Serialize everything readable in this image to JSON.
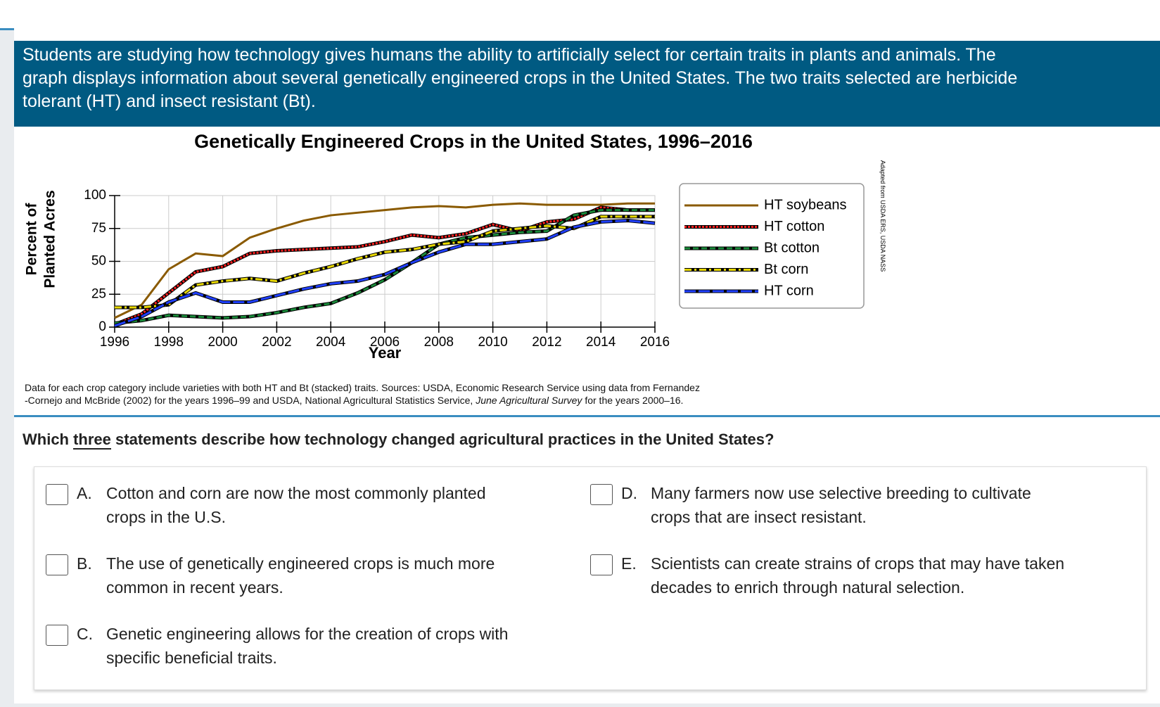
{
  "passage": {
    "lines": [
      "Students are studying how technology gives humans the ability to artificially select for certain traits in plants and animals. The",
      "graph displays information about several genetically engineered crops in the United States. The two traits selected are herbicide",
      "tolerant (HT) and insect resistant (Bt)."
    ]
  },
  "chart_data": {
    "type": "line",
    "title": "Genetically Engineered Crops in the United States, 1996–2016",
    "ylabel": [
      "Percent of",
      "Planted Acres"
    ],
    "xlabel": "Year",
    "source_note": "Adapted from USDA ERS, USDA NASS",
    "x": [
      1996,
      1997,
      1998,
      1999,
      2000,
      2001,
      2002,
      2003,
      2004,
      2005,
      2006,
      2007,
      2008,
      2009,
      2010,
      2011,
      2012,
      2013,
      2014,
      2015,
      2016
    ],
    "xlim": [
      1996,
      2016
    ],
    "xticks": [
      1996,
      1998,
      2000,
      2002,
      2004,
      2006,
      2008,
      2010,
      2012,
      2014,
      2016
    ],
    "ylim": [
      0,
      100
    ],
    "yticks": [
      0,
      25,
      50,
      75,
      100
    ],
    "grid": true,
    "legend": "right",
    "series": [
      {
        "name": "HT soybeans",
        "color": "#8a5a00",
        "style": "solid",
        "values": [
          7,
          17,
          44,
          56,
          54,
          68,
          75,
          81,
          85,
          87,
          89,
          91,
          92,
          91,
          93,
          94,
          93,
          93,
          93,
          94,
          94
        ]
      },
      {
        "name": "HT cotton",
        "color": "#ff2020",
        "style": "dotted",
        "values": [
          2,
          10,
          26,
          42,
          46,
          56,
          58,
          59,
          60,
          61,
          65,
          70,
          68,
          71,
          78,
          73,
          80,
          82,
          91,
          89,
          89
        ]
      },
      {
        "name": "Bt cotton",
        "color": "#1a8a3a",
        "style": "dashed",
        "values": [
          3,
          5,
          9,
          8,
          7,
          8,
          11,
          15,
          18,
          26,
          36,
          49,
          63,
          68,
          70,
          72,
          73,
          85,
          89,
          89,
          89
        ]
      },
      {
        "name": "Bt corn",
        "color": "#e8d800",
        "style": "dash-dot",
        "values": [
          15,
          15,
          17,
          32,
          35,
          37,
          35,
          41,
          46,
          52,
          57,
          59,
          63,
          65,
          73,
          75,
          77,
          75,
          84,
          84,
          84
        ]
      },
      {
        "name": "HT corn",
        "color": "#2040ff",
        "style": "long-dash",
        "values": [
          1,
          8,
          19,
          26,
          19,
          19,
          24,
          29,
          33,
          35,
          40,
          49,
          57,
          63,
          63,
          65,
          67,
          76,
          80,
          81,
          79
        ]
      }
    ]
  },
  "footnote": {
    "line1": "Data for each crop category include varieties with both HT and Bt (stacked) traits. Sources: USDA, Economic Research Service using data from Fernandez",
    "line2_start": "-Cornejo and McBride (2002) for the years 1996–99 and USDA, National Agricultural Statistics Service, ",
    "line2_italic": "June Agricultural Survey",
    "line2_end": " for the years 2000–16."
  },
  "question": {
    "before": "Which ",
    "emphasis": "three",
    "after": " statements describe how technology changed agricultural practices in the United States?"
  },
  "options": [
    {
      "letter": "A.",
      "lines": [
        "Cotton and corn are now the most commonly planted",
        "crops in the U.S."
      ]
    },
    {
      "letter": "B.",
      "lines": [
        "The use of genetically engineered crops is much more",
        "common in recent years."
      ]
    },
    {
      "letter": "C.",
      "lines": [
        "Genetic engineering allows for the creation of crops with",
        "specific beneficial traits."
      ]
    },
    {
      "letter": "D.",
      "lines": [
        "Many farmers now use selective breeding to cultivate",
        "crops that are insect resistant."
      ]
    },
    {
      "letter": "E.",
      "lines": [
        "Scientists can create strains of crops that may have taken",
        "decades to enrich through natural selection."
      ]
    }
  ]
}
